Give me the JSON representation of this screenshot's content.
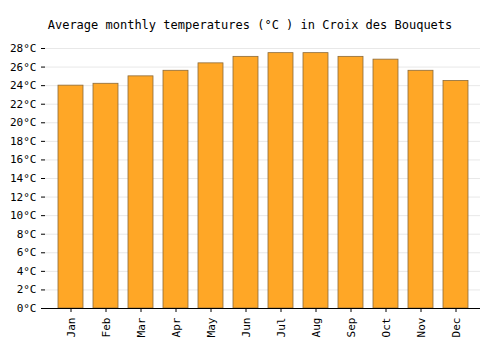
{
  "chart_data": {
    "type": "bar",
    "title": "Average monthly temperatures (°C ) in Croix des Bouquets",
    "categories": [
      "Jan",
      "Feb",
      "Mar",
      "Apr",
      "May",
      "Jun",
      "Jul",
      "Aug",
      "Sep",
      "Oct",
      "Nov",
      "Dec"
    ],
    "values": [
      24.0,
      24.2,
      25.0,
      25.6,
      26.4,
      27.1,
      27.5,
      27.5,
      27.1,
      26.8,
      25.6,
      24.5
    ],
    "color": "#ffa726",
    "ylim": [
      0,
      28
    ],
    "yticks": [
      {
        "value": 0,
        "label": "0°C"
      },
      {
        "value": 2,
        "label": "2°C"
      },
      {
        "value": 4,
        "label": "4°C"
      },
      {
        "value": 6,
        "label": "6°C"
      },
      {
        "value": 8,
        "label": "8°C"
      },
      {
        "value": 10,
        "label": "10°C"
      },
      {
        "value": 12,
        "label": "12°C"
      },
      {
        "value": 14,
        "label": "14°C"
      },
      {
        "value": 16,
        "label": "16°C"
      },
      {
        "value": 18,
        "label": "18°C"
      },
      {
        "value": 20,
        "label": "20°C"
      },
      {
        "value": 22,
        "label": "22°C"
      },
      {
        "value": 24,
        "label": "24°C"
      },
      {
        "value": 26,
        "label": "26°C"
      },
      {
        "value": 28,
        "label": "28°C"
      }
    ],
    "grid": true
  }
}
